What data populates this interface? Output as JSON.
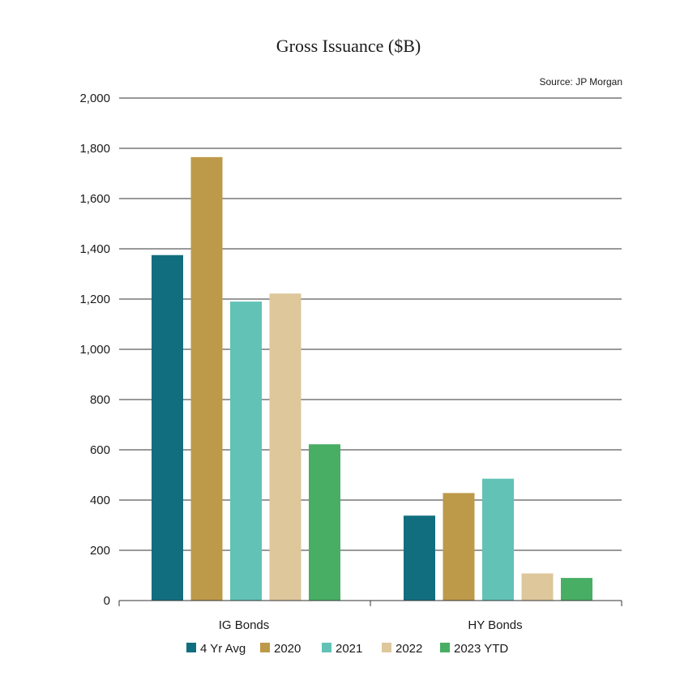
{
  "chart_data": {
    "type": "bar",
    "title": "Gross Issuance ($B)",
    "source": "Source: JP Morgan",
    "categories": [
      "IG Bonds",
      "HY Bonds"
    ],
    "series": [
      {
        "name": "4 Yr Avg",
        "color": "#116e7f",
        "values": [
          1375,
          338
        ]
      },
      {
        "name": "2020",
        "color": "#bd9a4a",
        "values": [
          1765,
          428
        ]
      },
      {
        "name": "2021",
        "color": "#62c2b6",
        "values": [
          1190,
          485
        ]
      },
      {
        "name": "2022",
        "color": "#ddc79b",
        "values": [
          1222,
          108
        ]
      },
      {
        "name": "2023 YTD",
        "color": "#47ae64",
        "values": [
          622,
          90
        ]
      }
    ],
    "ylim": [
      0,
      2000
    ],
    "yticks": [
      0,
      200,
      400,
      600,
      800,
      1000,
      1200,
      1400,
      1600,
      1800,
      2000
    ],
    "ytick_labels": [
      "0",
      "200",
      "400",
      "600",
      "800",
      "1,000",
      "1,200",
      "1,400",
      "1,600",
      "1,800",
      "2,000"
    ],
    "grid": true,
    "legend_position": "bottom"
  }
}
